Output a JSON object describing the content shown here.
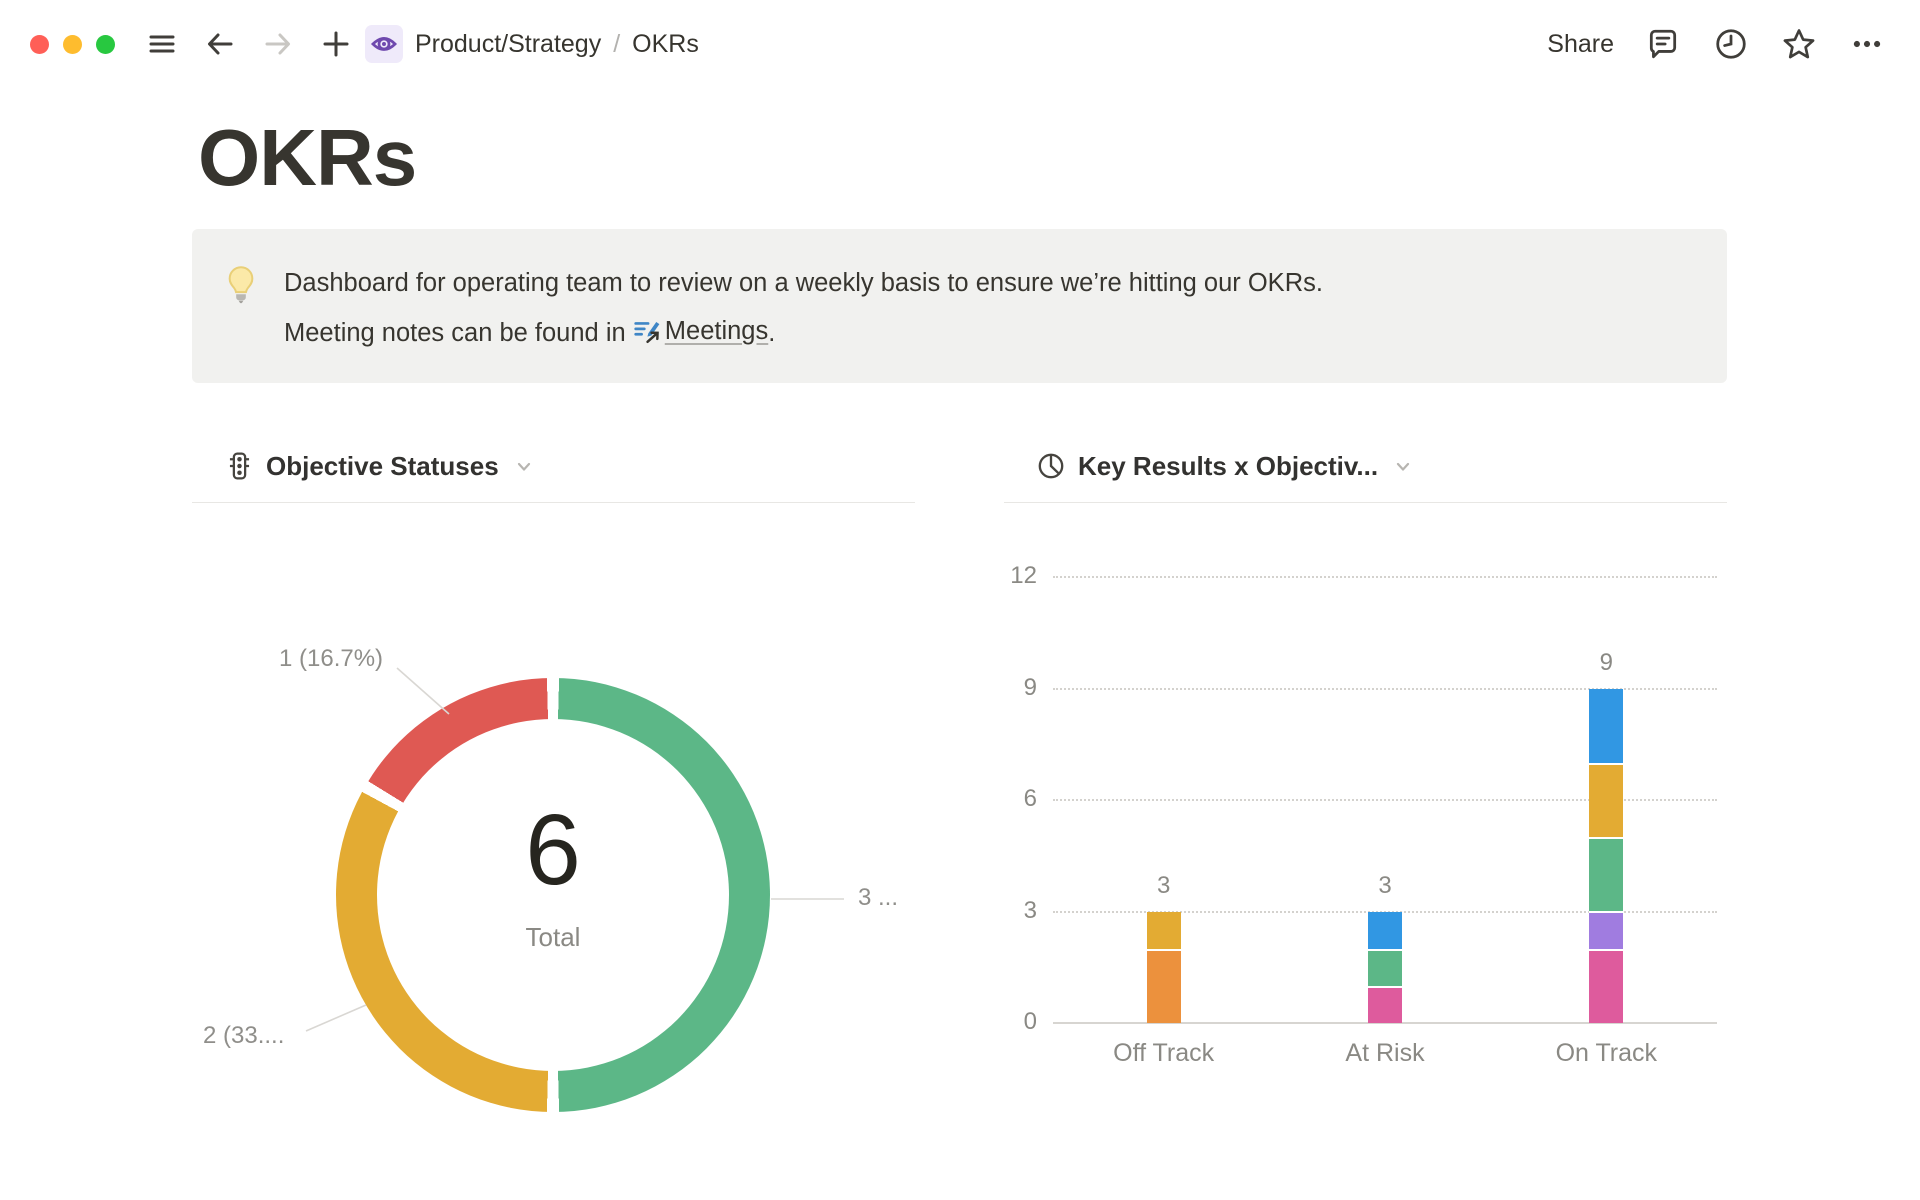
{
  "titlebar": {
    "window_controls": [
      "close",
      "minimize",
      "zoom"
    ],
    "breadcrumb": {
      "parent": "Product/Strategy",
      "separator": "/",
      "current": "OKRs"
    },
    "share_label": "Share",
    "icons": [
      "sidebar-menu-icon",
      "back-icon",
      "forward-icon",
      "plus-icon",
      "eye-page-icon",
      "comments-icon",
      "updates-clock-icon",
      "favorite-star-icon",
      "more-options-icon"
    ]
  },
  "page": {
    "title": "OKRs",
    "callout": {
      "icon": "lightbulb-icon",
      "line1": "Dashboard for operating team to review on a weekly basis to ensure we’re hitting our OKRs.",
      "line2_prefix": "Meeting notes can be found in",
      "link_label": "Meetings",
      "line2_suffix": "."
    }
  },
  "chart_data": [
    {
      "type": "pie",
      "variant": "donut",
      "icon": "traffic-light-icon",
      "title": "Objective Statuses",
      "center_value": "6",
      "center_label": "Total",
      "total": 6,
      "segments": [
        {
          "label": "3 ...",
          "value": 3,
          "pct": 50.0,
          "color": "#5cb787",
          "position": "right"
        },
        {
          "label": "2 (33....",
          "value": 2,
          "pct": 33.3,
          "color": "#e3ab33",
          "position": "bottom-left"
        },
        {
          "label": "1 (16.7%)",
          "value": 1,
          "pct": 16.7,
          "color": "#df5953",
          "position": "top-left"
        }
      ]
    },
    {
      "type": "bar",
      "stacked": true,
      "icon": "pie-chart-icon",
      "title": "Key Results x Objectiv...",
      "categories": [
        "Off Track",
        "At Risk",
        "On Track"
      ],
      "totals": [
        3,
        3,
        9
      ],
      "yticks": [
        0,
        3,
        6,
        9,
        12
      ],
      "ylim": [
        0,
        12
      ],
      "grid": "dotted-horizontal",
      "bars": [
        {
          "category": "Off Track",
          "segments": [
            {
              "color": "#ec913d",
              "value": 2
            },
            {
              "color": "#e3ab33",
              "value": 1
            }
          ]
        },
        {
          "category": "At Risk",
          "segments": [
            {
              "color": "#de5b9d",
              "value": 1
            },
            {
              "color": "#5cb787",
              "value": 1
            },
            {
              "color": "#3197e3",
              "value": 1
            }
          ]
        },
        {
          "category": "On Track",
          "segments": [
            {
              "color": "#de5b9d",
              "value": 2
            },
            {
              "color": "#a07ce0",
              "value": 1
            },
            {
              "color": "#5cb787",
              "value": 2
            },
            {
              "color": "#e3ab33",
              "value": 2
            },
            {
              "color": "#3197e3",
              "value": 2
            }
          ]
        }
      ]
    }
  ]
}
